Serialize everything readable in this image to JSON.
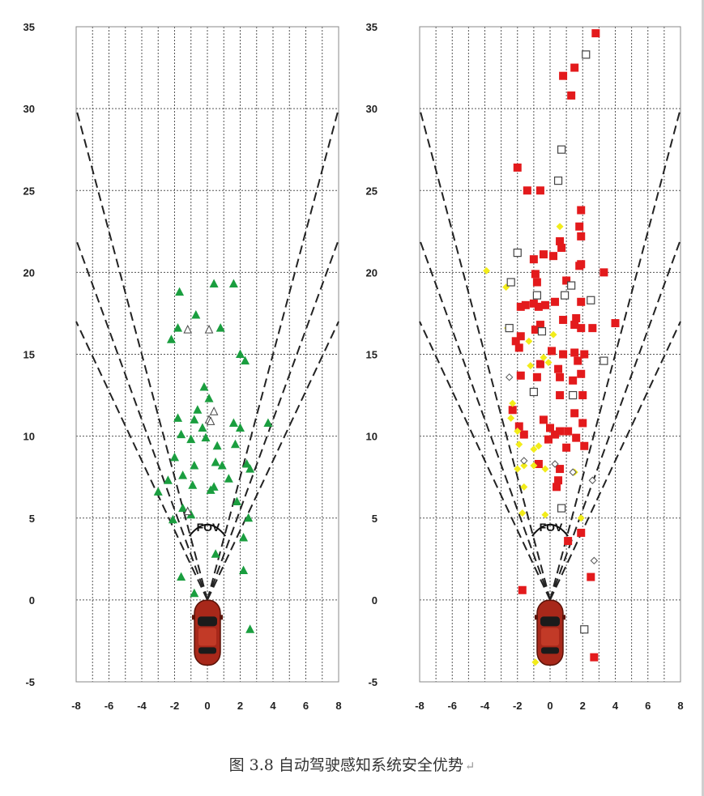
{
  "caption": {
    "text": "图 3.8    自动驾驶感知系统安全优势",
    "return_mark": "↵"
  },
  "colors": {
    "green": "#1a9e3f",
    "red": "#e31a1c",
    "yellow": "#f2ec1a",
    "hollow": "#444444",
    "grid": "#555555",
    "car": "#a8281a"
  },
  "chart_data": [
    {
      "type": "scatter",
      "panel": "left",
      "xlim": [
        -8,
        8
      ],
      "ylim": [
        -5,
        35
      ],
      "x_ticks": [
        -8,
        -6,
        -4,
        -2,
        0,
        2,
        4,
        6,
        8
      ],
      "y_ticks": [
        -5,
        0,
        5,
        10,
        15,
        20,
        25,
        30,
        35
      ],
      "grid": true,
      "annotations": [
        "FOV"
      ],
      "fov_lines": [
        {
          "to": [
            -8,
            30
          ]
        },
        {
          "to": [
            8,
            30
          ]
        },
        {
          "to": [
            -8,
            22
          ]
        },
        {
          "to": [
            8,
            22
          ]
        },
        {
          "to": [
            -8,
            17
          ]
        },
        {
          "to": [
            8,
            17
          ]
        }
      ],
      "series": [
        {
          "marker": "triangle-filled",
          "color": "#1a9e3f",
          "points": [
            [
              -1.7,
              18.8
            ],
            [
              0.4,
              19.3
            ],
            [
              1.6,
              19.3
            ],
            [
              -0.7,
              17.4
            ],
            [
              -1.8,
              16.6
            ],
            [
              -2.2,
              15.9
            ],
            [
              0.8,
              16.6
            ],
            [
              2.0,
              15.0
            ],
            [
              2.3,
              14.6
            ],
            [
              -0.2,
              13.0
            ],
            [
              0.1,
              12.3
            ],
            [
              -0.6,
              11.6
            ],
            [
              -1.8,
              11.1
            ],
            [
              -0.8,
              11.0
            ],
            [
              -0.3,
              10.5
            ],
            [
              1.6,
              10.8
            ],
            [
              2.0,
              10.5
            ],
            [
              3.7,
              10.8
            ],
            [
              -1.6,
              10.1
            ],
            [
              -1.0,
              9.8
            ],
            [
              -0.1,
              9.9
            ],
            [
              0.6,
              9.4
            ],
            [
              1.7,
              9.5
            ],
            [
              -2.0,
              8.7
            ],
            [
              -0.8,
              8.2
            ],
            [
              0.5,
              8.4
            ],
            [
              0.9,
              8.2
            ],
            [
              2.4,
              8.3
            ],
            [
              2.6,
              8.0
            ],
            [
              -1.5,
              7.6
            ],
            [
              1.3,
              7.4
            ],
            [
              -2.4,
              7.3
            ],
            [
              -0.9,
              7.0
            ],
            [
              0.2,
              6.7
            ],
            [
              0.4,
              6.9
            ],
            [
              -3.0,
              6.6
            ],
            [
              1.8,
              6.0
            ],
            [
              -1.0,
              5.2
            ],
            [
              -1.5,
              5.6
            ],
            [
              -2.1,
              4.9
            ],
            [
              2.5,
              5.0
            ],
            [
              2.2,
              3.8
            ],
            [
              0.5,
              2.8
            ],
            [
              2.2,
              1.8
            ],
            [
              -1.6,
              1.4
            ],
            [
              -0.8,
              0.4
            ],
            [
              2.6,
              -1.8
            ]
          ]
        },
        {
          "marker": "triangle-hollow",
          "color": "#444444",
          "points": [
            [
              -1.2,
              16.5
            ],
            [
              0.1,
              16.5
            ],
            [
              0.1,
              11.0
            ],
            [
              0.4,
              11.5
            ],
            [
              0.2,
              10.9
            ],
            [
              -1.2,
              5.4
            ]
          ]
        }
      ]
    },
    {
      "type": "scatter",
      "panel": "right",
      "xlim": [
        -8,
        8
      ],
      "ylim": [
        -5,
        35
      ],
      "x_ticks": [
        -8,
        -6,
        -4,
        -2,
        0,
        2,
        4,
        6,
        8
      ],
      "y_ticks": [
        -5,
        0,
        5,
        10,
        15,
        20,
        25,
        30,
        35
      ],
      "grid": true,
      "annotations": [
        "FOV"
      ],
      "fov_lines": [
        {
          "to": [
            -8,
            30
          ]
        },
        {
          "to": [
            8,
            30
          ]
        },
        {
          "to": [
            -8,
            22
          ]
        },
        {
          "to": [
            8,
            22
          ]
        },
        {
          "to": [
            -8,
            17
          ]
        },
        {
          "to": [
            8,
            17
          ]
        }
      ],
      "series": [
        {
          "marker": "square-filled",
          "color": "#e31a1c",
          "points": [
            [
              2.8,
              34.6
            ],
            [
              1.5,
              32.5
            ],
            [
              0.8,
              32.0
            ],
            [
              1.3,
              30.8
            ],
            [
              -2.0,
              26.4
            ],
            [
              -1.4,
              25.0
            ],
            [
              -0.6,
              25.0
            ],
            [
              1.9,
              23.8
            ],
            [
              1.8,
              22.8
            ],
            [
              1.9,
              22.2
            ],
            [
              0.6,
              21.9
            ],
            [
              0.7,
              21.5
            ],
            [
              -0.4,
              21.1
            ],
            [
              -1.0,
              20.8
            ],
            [
              0.2,
              21.0
            ],
            [
              1.9,
              20.5
            ],
            [
              1.8,
              20.4
            ],
            [
              3.3,
              20.0
            ],
            [
              -0.9,
              19.9
            ],
            [
              1.0,
              19.5
            ],
            [
              -0.8,
              19.4
            ],
            [
              -1.8,
              17.9
            ],
            [
              -1.5,
              18.0
            ],
            [
              -1.0,
              18.1
            ],
            [
              -0.7,
              17.9
            ],
            [
              -0.3,
              18.0
            ],
            [
              0.3,
              18.2
            ],
            [
              1.9,
              18.2
            ],
            [
              1.6,
              17.2
            ],
            [
              0.8,
              17.1
            ],
            [
              -0.6,
              16.8
            ],
            [
              -0.9,
              16.5
            ],
            [
              1.5,
              16.8
            ],
            [
              1.9,
              16.6
            ],
            [
              2.6,
              16.6
            ],
            [
              4.0,
              16.9
            ],
            [
              -1.8,
              16.1
            ],
            [
              -2.1,
              15.8
            ],
            [
              -1.9,
              15.4
            ],
            [
              0.1,
              15.2
            ],
            [
              0.8,
              15.0
            ],
            [
              1.5,
              15.1
            ],
            [
              2.1,
              15.0
            ],
            [
              1.7,
              14.6
            ],
            [
              -0.6,
              14.4
            ],
            [
              0.5,
              14.1
            ],
            [
              -1.8,
              13.7
            ],
            [
              -0.8,
              13.6
            ],
            [
              0.6,
              13.6
            ],
            [
              1.4,
              13.4
            ],
            [
              1.9,
              13.8
            ],
            [
              0.6,
              12.5
            ],
            [
              2.0,
              12.5
            ],
            [
              1.5,
              11.4
            ],
            [
              -2.3,
              11.6
            ],
            [
              -0.4,
              11.0
            ],
            [
              2.0,
              10.8
            ],
            [
              0.0,
              10.5
            ],
            [
              0.6,
              10.3
            ],
            [
              1.1,
              10.3
            ],
            [
              -1.9,
              10.6
            ],
            [
              -1.6,
              10.1
            ],
            [
              0.3,
              10.1
            ],
            [
              -0.1,
              9.8
            ],
            [
              1.6,
              9.9
            ],
            [
              2.1,
              9.4
            ],
            [
              1.0,
              9.3
            ],
            [
              -0.7,
              8.3
            ],
            [
              0.6,
              8.0
            ],
            [
              0.5,
              7.3
            ],
            [
              0.4,
              6.9
            ],
            [
              1.9,
              4.1
            ],
            [
              1.1,
              3.6
            ],
            [
              -1.7,
              0.6
            ],
            [
              2.5,
              1.4
            ],
            [
              2.7,
              -3.5
            ]
          ]
        },
        {
          "marker": "diamond-filled",
          "color": "#f2ec1a",
          "points": [
            [
              -3.9,
              20.1
            ],
            [
              -2.7,
              19.1
            ],
            [
              -2.6,
              16.6
            ],
            [
              -1.3,
              15.8
            ],
            [
              0.2,
              16.2
            ],
            [
              -0.4,
              14.8
            ],
            [
              -0.1,
              14.5
            ],
            [
              -1.2,
              14.3
            ],
            [
              -2.3,
              12.0
            ],
            [
              -2.4,
              11.1
            ],
            [
              -2.0,
              10.3
            ],
            [
              -1.9,
              9.5
            ],
            [
              -1.0,
              9.2
            ],
            [
              -0.7,
              9.4
            ],
            [
              -1.6,
              8.2
            ],
            [
              -2.0,
              8.0
            ],
            [
              -1.0,
              8.2
            ],
            [
              -0.3,
              8.0
            ],
            [
              1.5,
              7.8
            ],
            [
              -1.6,
              6.9
            ],
            [
              -1.7,
              5.3
            ],
            [
              -0.3,
              5.2
            ],
            [
              0.6,
              22.8
            ],
            [
              1.9,
              5.0
            ],
            [
              -0.9,
              -3.8
            ]
          ]
        },
        {
          "marker": "square-hollow",
          "color": "#444444",
          "points": [
            [
              2.2,
              33.3
            ],
            [
              0.7,
              27.5
            ],
            [
              0.5,
              25.6
            ],
            [
              -2.0,
              21.2
            ],
            [
              -2.4,
              19.4
            ],
            [
              1.3,
              19.2
            ],
            [
              0.9,
              18.6
            ],
            [
              -0.8,
              18.6
            ],
            [
              2.5,
              18.3
            ],
            [
              -0.5,
              16.4
            ],
            [
              -2.5,
              16.6
            ],
            [
              3.3,
              14.6
            ],
            [
              -1.0,
              12.7
            ],
            [
              1.4,
              12.5
            ],
            [
              0.7,
              5.6
            ],
            [
              2.1,
              -1.8
            ]
          ]
        },
        {
          "marker": "diamond-hollow",
          "color": "#555555",
          "points": [
            [
              -2.5,
              13.6
            ],
            [
              -1.6,
              8.5
            ],
            [
              0.3,
              8.3
            ],
            [
              1.4,
              7.8
            ],
            [
              2.6,
              7.3
            ],
            [
              2.7,
              2.4
            ]
          ]
        }
      ]
    }
  ]
}
